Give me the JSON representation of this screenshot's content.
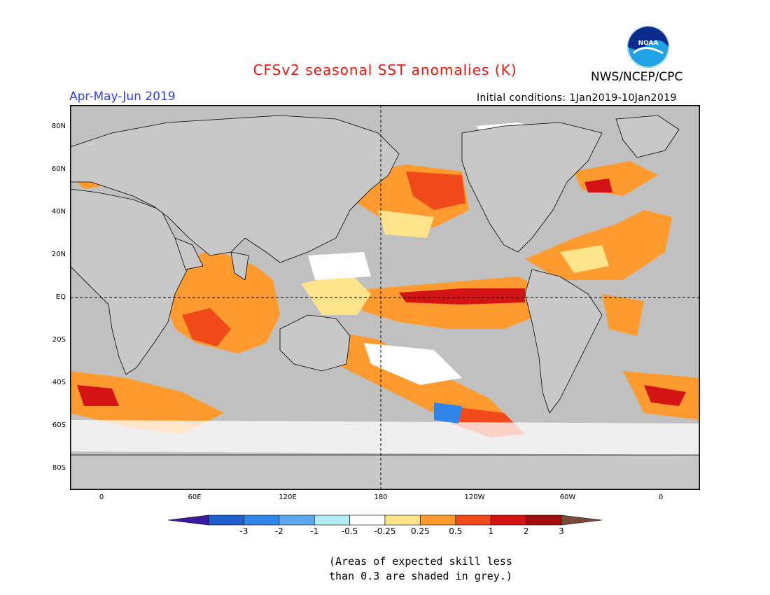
{
  "header": {
    "title": "CFSv2 seasonal SST anomalies (K)",
    "org": "NWS/NCEP/CPC",
    "period": "Apr-May-Jun 2019",
    "initial_conditions": "Initial conditions: 1Jan2019-10Jan2019",
    "logo_text": "NOAA"
  },
  "colors": {
    "title": "#e8160c",
    "period": "#2e3ee0",
    "land": "#c8c8c8",
    "grey_skill": "#c0c0c0"
  },
  "map": {
    "lat_labels": [
      "80N",
      "60N",
      "40N",
      "20N",
      "EQ",
      "20S",
      "40S",
      "60S",
      "80S"
    ],
    "lon_labels": [
      "0",
      "60E",
      "120E",
      "180",
      "120W",
      "60W",
      "0"
    ]
  },
  "colorbar": {
    "labels": [
      "-3",
      "-2",
      "-1",
      "-0.5",
      "-0.25",
      "0.25",
      "0.5",
      "1",
      "2",
      "3"
    ],
    "colors": [
      "#3a1aa0",
      "#1e5fcc",
      "#2f86e8",
      "#5fa8ef",
      "#b4ecf4",
      "#ffffff",
      "#fde38a",
      "#fe9a2e",
      "#f04a1a",
      "#d41414",
      "#a00d0d",
      "#7a4a3a"
    ]
  },
  "note": {
    "line1": "(Areas of expected skill less",
    "line2": "than 0.3 are shaded in grey.)"
  }
}
